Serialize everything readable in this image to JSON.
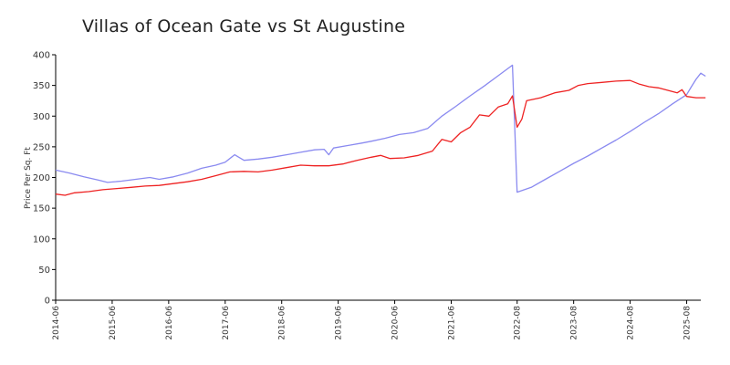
{
  "chart_data": {
    "type": "line",
    "title": "Villas of Ocean Gate vs St Augustine",
    "ylabel": "Price Per Sq. Ft",
    "xlabel": "",
    "ylim": [
      0,
      400
    ],
    "yticks": [
      0,
      50,
      100,
      150,
      200,
      250,
      300,
      350,
      400
    ],
    "xlim": [
      "2014-06",
      "2025-11"
    ],
    "xticks": [
      "2014-06",
      "2015-06",
      "2016-06",
      "2017-06",
      "2018-06",
      "2019-06",
      "2020-06",
      "2021-06",
      "2022-08",
      "2023-08",
      "2024-08",
      "2025-08"
    ],
    "grid": false,
    "legend": "none",
    "series": [
      {
        "color": "#8a8af0",
        "points": [
          [
            "2014-06",
            212
          ],
          [
            "2014-09",
            207
          ],
          [
            "2014-12",
            201
          ],
          [
            "2015-03",
            196
          ],
          [
            "2015-05",
            192
          ],
          [
            "2015-08",
            194
          ],
          [
            "2015-11",
            197
          ],
          [
            "2016-02",
            200
          ],
          [
            "2016-04",
            197
          ],
          [
            "2016-07",
            201
          ],
          [
            "2016-10",
            207
          ],
          [
            "2017-01",
            215
          ],
          [
            "2017-04",
            220
          ],
          [
            "2017-06",
            225
          ],
          [
            "2017-08",
            237
          ],
          [
            "2017-10",
            228
          ],
          [
            "2018-01",
            230
          ],
          [
            "2018-04",
            233
          ],
          [
            "2018-07",
            237
          ],
          [
            "2018-10",
            241
          ],
          [
            "2019-01",
            245
          ],
          [
            "2019-03",
            246
          ],
          [
            "2019-04",
            237
          ],
          [
            "2019-05",
            248
          ],
          [
            "2019-08",
            252
          ],
          [
            "2019-11",
            256
          ],
          [
            "2020-01",
            259
          ],
          [
            "2020-04",
            264
          ],
          [
            "2020-07",
            270
          ],
          [
            "2020-10",
            273
          ],
          [
            "2021-01",
            280
          ],
          [
            "2021-04",
            300
          ],
          [
            "2021-07",
            316
          ],
          [
            "2021-10",
            333
          ],
          [
            "2022-01",
            349
          ],
          [
            "2022-04",
            366
          ],
          [
            "2022-07",
            383
          ],
          [
            "2022-08",
            176
          ],
          [
            "2022-11",
            184
          ],
          [
            "2023-02",
            197
          ],
          [
            "2023-05",
            210
          ],
          [
            "2023-08",
            223
          ],
          [
            "2023-11",
            235
          ],
          [
            "2024-02",
            248
          ],
          [
            "2024-05",
            261
          ],
          [
            "2024-08",
            275
          ],
          [
            "2024-11",
            290
          ],
          [
            "2025-02",
            304
          ],
          [
            "2025-05",
            320
          ],
          [
            "2025-08",
            335
          ],
          [
            "2025-09",
            348
          ],
          [
            "2025-10",
            360
          ],
          [
            "2025-11",
            370
          ],
          [
            "2025-12",
            365
          ]
        ]
      },
      {
        "color": "#ee2222",
        "points": [
          [
            "2014-06",
            173
          ],
          [
            "2014-08",
            171
          ],
          [
            "2014-10",
            175
          ],
          [
            "2015-01",
            177
          ],
          [
            "2015-04",
            180
          ],
          [
            "2015-07",
            182
          ],
          [
            "2015-10",
            184
          ],
          [
            "2016-01",
            186
          ],
          [
            "2016-04",
            187
          ],
          [
            "2016-07",
            190
          ],
          [
            "2016-10",
            193
          ],
          [
            "2017-01",
            197
          ],
          [
            "2017-04",
            203
          ],
          [
            "2017-07",
            209
          ],
          [
            "2017-10",
            210
          ],
          [
            "2018-01",
            209
          ],
          [
            "2018-04",
            212
          ],
          [
            "2018-07",
            216
          ],
          [
            "2018-10",
            220
          ],
          [
            "2019-01",
            219
          ],
          [
            "2019-04",
            219
          ],
          [
            "2019-07",
            222
          ],
          [
            "2019-10",
            228
          ],
          [
            "2020-01",
            233
          ],
          [
            "2020-03",
            236
          ],
          [
            "2020-05",
            231
          ],
          [
            "2020-08",
            232
          ],
          [
            "2020-11",
            236
          ],
          [
            "2021-02",
            243
          ],
          [
            "2021-04",
            262
          ],
          [
            "2021-06",
            258
          ],
          [
            "2021-08",
            273
          ],
          [
            "2021-10",
            282
          ],
          [
            "2021-12",
            302
          ],
          [
            "2022-02",
            300
          ],
          [
            "2022-04",
            315
          ],
          [
            "2022-06",
            320
          ],
          [
            "2022-07",
            333
          ],
          [
            "2022-08",
            282
          ],
          [
            "2022-09",
            295
          ],
          [
            "2022-10",
            325
          ],
          [
            "2023-01",
            330
          ],
          [
            "2023-04",
            338
          ],
          [
            "2023-07",
            342
          ],
          [
            "2023-09",
            350
          ],
          [
            "2023-11",
            353
          ],
          [
            "2024-02",
            355
          ],
          [
            "2024-05",
            357
          ],
          [
            "2024-08",
            358
          ],
          [
            "2024-10",
            352
          ],
          [
            "2024-12",
            348
          ],
          [
            "2025-02",
            346
          ],
          [
            "2025-04",
            342
          ],
          [
            "2025-06",
            338
          ],
          [
            "2025-07",
            343
          ],
          [
            "2025-08",
            332
          ],
          [
            "2025-10",
            330
          ],
          [
            "2025-12",
            330
          ]
        ]
      }
    ]
  }
}
